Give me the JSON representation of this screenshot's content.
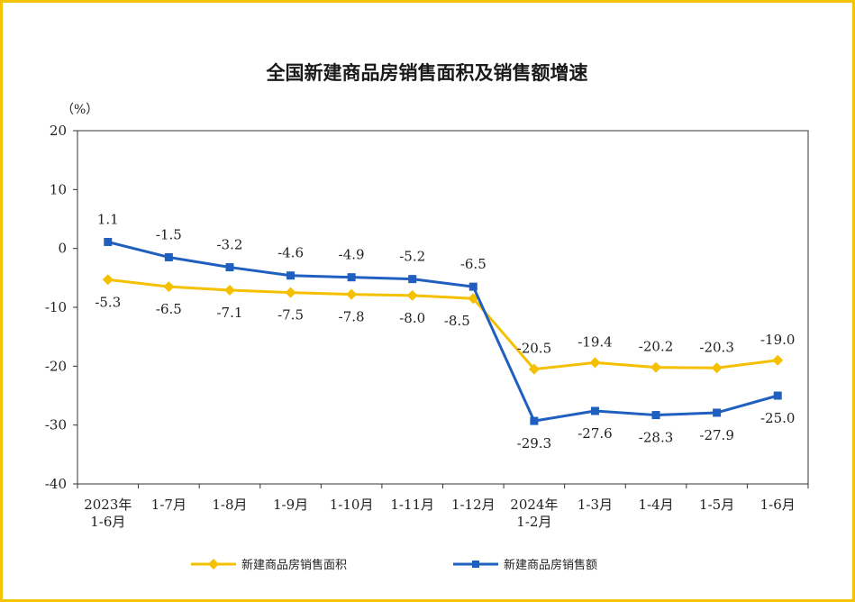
{
  "chart_data": {
    "type": "line",
    "title": "全国新建商品房销售面积及销售额增速",
    "unit": "（%）",
    "ylim": [
      -40,
      20
    ],
    "yticks": [
      "20",
      "10",
      "0",
      "-10",
      "-20",
      "-30",
      "-40"
    ],
    "categories": [
      [
        "2023年",
        "1-6月"
      ],
      [
        "1-7月"
      ],
      [
        "1-8月"
      ],
      [
        "1-9月"
      ],
      [
        "1-10月"
      ],
      [
        "1-11月"
      ],
      [
        "1-12月"
      ],
      [
        "2024年",
        "1-2月"
      ],
      [
        "1-3月"
      ],
      [
        "1-4月"
      ],
      [
        "1-5月"
      ],
      [
        "1-6月"
      ]
    ],
    "series": [
      {
        "name": "新建商品房销售面积",
        "color": "#f5c000",
        "marker": "diamond",
        "values": [
          -5.3,
          -6.5,
          -7.1,
          -7.5,
          -7.8,
          -8.0,
          -8.5,
          -20.5,
          -19.4,
          -20.2,
          -20.3,
          -19.0
        ]
      },
      {
        "name": "新建商品房销售额",
        "color": "#1f5fbf",
        "marker": "square",
        "values": [
          1.1,
          -1.5,
          -3.2,
          -4.6,
          -4.9,
          -5.2,
          -6.5,
          -29.3,
          -27.6,
          -28.3,
          -27.9,
          -25.0
        ]
      }
    ],
    "grid": false,
    "legend": "bottom"
  }
}
